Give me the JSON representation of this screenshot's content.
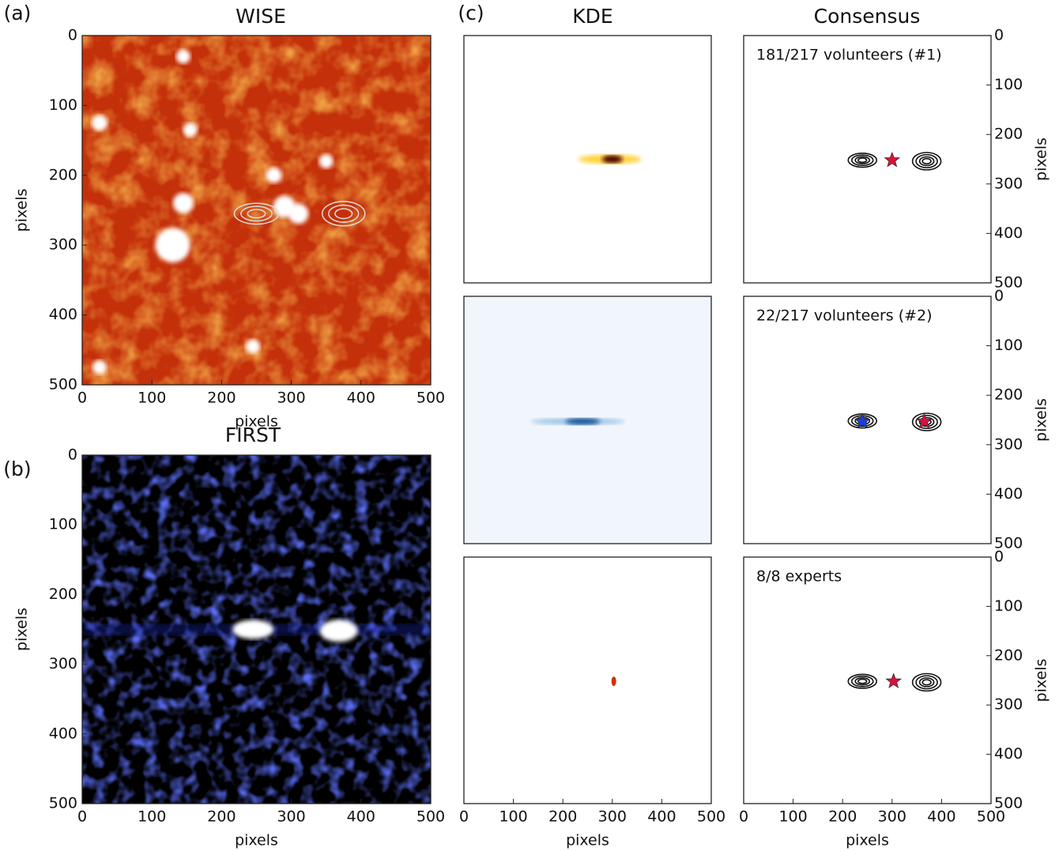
{
  "chart_data": [
    {
      "type": "image",
      "panel_label": "(a)",
      "title": "WISE",
      "x_label": "pixels",
      "y_label": "pixels",
      "xlim": [
        0,
        500
      ],
      "ylim": [
        500,
        0
      ],
      "xticks": [
        0,
        100,
        200,
        300,
        400,
        500
      ],
      "yticks": [
        0,
        100,
        200,
        300,
        400,
        500
      ],
      "colormap": "hot"
    },
    {
      "type": "image",
      "panel_label": "(b)",
      "title": "FIRST",
      "x_label": "pixels",
      "y_label": "pixels",
      "xlim": [
        0,
        500
      ],
      "ylim": [
        500,
        0
      ],
      "xticks": [
        0,
        100,
        200,
        300,
        400,
        500
      ],
      "yticks": [
        0,
        100,
        200,
        300,
        400,
        500
      ],
      "colormap": "blue"
    },
    {
      "type": "image",
      "panel_label": "(c)",
      "title": "KDE",
      "xlim": [
        0,
        500
      ],
      "ylim": [
        500,
        0
      ],
      "colormap": "hot"
    },
    {
      "type": "image",
      "xlim": [
        0,
        500
      ],
      "ylim": [
        500,
        0
      ],
      "colormap": "blues"
    },
    {
      "type": "image",
      "x_label": "pixels",
      "xlim": [
        0,
        500
      ],
      "ylim": [
        500,
        0
      ],
      "xticks": [
        0,
        100,
        200,
        300,
        400,
        500
      ],
      "colormap": "hot"
    },
    {
      "type": "scatter",
      "title": "Consensus",
      "annotation": "181/217 volunteers (#1)",
      "y_label": "pixels",
      "y_axis_side": "right",
      "xlim": [
        0,
        500
      ],
      "ylim": [
        500,
        0
      ],
      "yticks": [
        0,
        100,
        200,
        300,
        400,
        500
      ],
      "x": [
        300
      ],
      "values": [
        252
      ],
      "colors": [
        "#d6143c"
      ]
    },
    {
      "type": "scatter",
      "annotation": "22/217 volunteers (#2)",
      "y_label": "pixels",
      "y_axis_side": "right",
      "xlim": [
        0,
        500
      ],
      "ylim": [
        500,
        0
      ],
      "yticks": [
        0,
        100,
        200,
        300,
        400,
        500
      ],
      "x": [
        240,
        365
      ],
      "values": [
        253,
        253
      ],
      "colors": [
        "#1a3de0",
        "#d6143c"
      ]
    },
    {
      "type": "scatter",
      "annotation": "8/8 experts",
      "x_label": "pixels",
      "y_label": "pixels",
      "y_axis_side": "right",
      "xlim": [
        0,
        500
      ],
      "ylim": [
        500,
        0
      ],
      "xticks": [
        0,
        100,
        200,
        300,
        400,
        500
      ],
      "yticks": [
        0,
        100,
        200,
        300,
        400,
        500
      ],
      "x": [
        303
      ],
      "values": [
        252
      ],
      "colors": [
        "#d6143c"
      ]
    }
  ]
}
